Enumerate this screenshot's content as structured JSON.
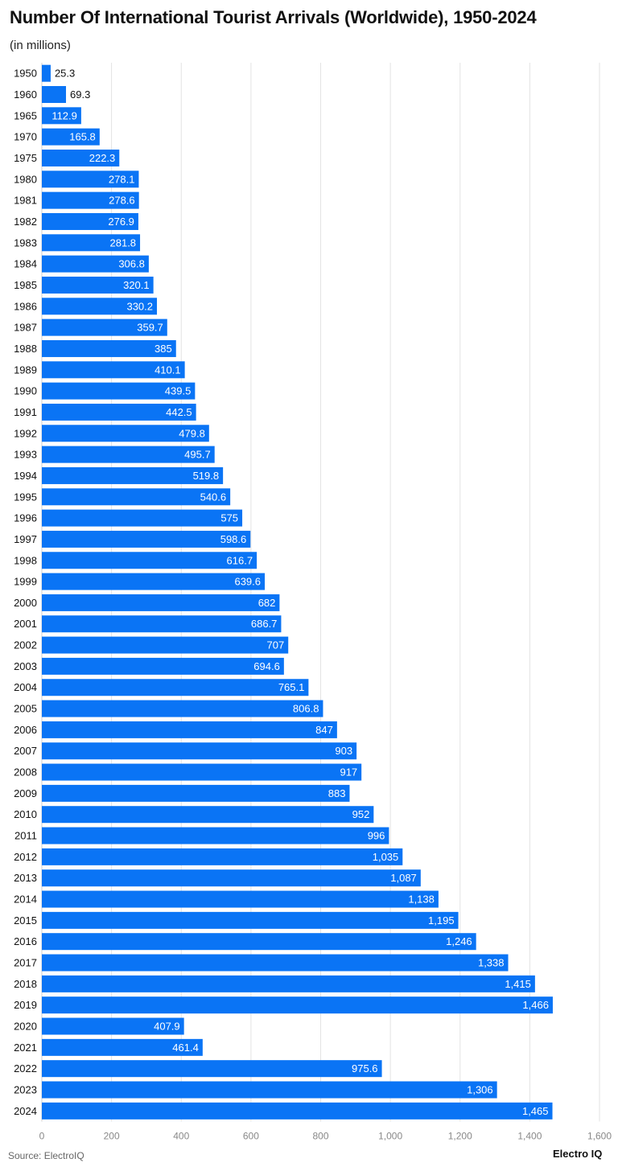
{
  "title": "Number Of International Tourist Arrivals (Worldwide), 1950-2024",
  "subtitle": "(in millions)",
  "source": "Source: ElectroIQ",
  "brand": "Electro IQ",
  "colors": {
    "bar": "#0a74f5",
    "grid": "#e3e3e3",
    "label_inside": "#ffffff",
    "label_outside": "#111111",
    "tick": "#888888"
  },
  "chart_data": {
    "type": "bar",
    "orientation": "horizontal",
    "categories": [
      "1950",
      "1960",
      "1965",
      "1970",
      "1975",
      "1980",
      "1981",
      "1982",
      "1983",
      "1984",
      "1985",
      "1986",
      "1987",
      "1988",
      "1989",
      "1990",
      "1991",
      "1992",
      "1993",
      "1994",
      "1995",
      "1996",
      "1997",
      "1998",
      "1999",
      "2000",
      "2001",
      "2002",
      "2003",
      "2004",
      "2005",
      "2006",
      "2007",
      "2008",
      "2009",
      "2010",
      "2011",
      "2012",
      "2013",
      "2014",
      "2015",
      "2016",
      "2017",
      "2018",
      "2019",
      "2020",
      "2021",
      "2022",
      "2023",
      "2024"
    ],
    "values": [
      25.3,
      69.3,
      112.9,
      165.8,
      222.3,
      278.1,
      278.6,
      276.9,
      281.8,
      306.8,
      320.1,
      330.2,
      359.7,
      385,
      410.1,
      439.5,
      442.5,
      479.8,
      495.7,
      519.8,
      540.6,
      575,
      598.6,
      616.7,
      639.6,
      682,
      686.7,
      707,
      694.6,
      765.1,
      806.8,
      847,
      903,
      917,
      883,
      952,
      996,
      1035,
      1087,
      1138,
      1195,
      1246,
      1338,
      1415,
      1466,
      407.9,
      461.4,
      975.6,
      1306,
      1465
    ],
    "value_labels": [
      "25.3",
      "69.3",
      "112.9",
      "165.8",
      "222.3",
      "278.1",
      "278.6",
      "276.9",
      "281.8",
      "306.8",
      "320.1",
      "330.2",
      "359.7",
      "385",
      "410.1",
      "439.5",
      "442.5",
      "479.8",
      "495.7",
      "519.8",
      "540.6",
      "575",
      "598.6",
      "616.7",
      "639.6",
      "682",
      "686.7",
      "707",
      "694.6",
      "765.1",
      "806.8",
      "847",
      "903",
      "917",
      "883",
      "952",
      "996",
      "1,035",
      "1,087",
      "1,138",
      "1,195",
      "1,246",
      "1,338",
      "1,415",
      "1,466",
      "407.9",
      "461.4",
      "975.6",
      "1,306",
      "1,465"
    ],
    "xlim": [
      0,
      1600
    ],
    "x_ticks": [
      0,
      200,
      400,
      600,
      800,
      1000,
      1200,
      1400,
      1600
    ],
    "x_tick_labels": [
      "0",
      "200",
      "400",
      "600",
      "800",
      "1,000",
      "1,200",
      "1,400",
      "1,600"
    ],
    "grid": true,
    "legend": "none"
  }
}
